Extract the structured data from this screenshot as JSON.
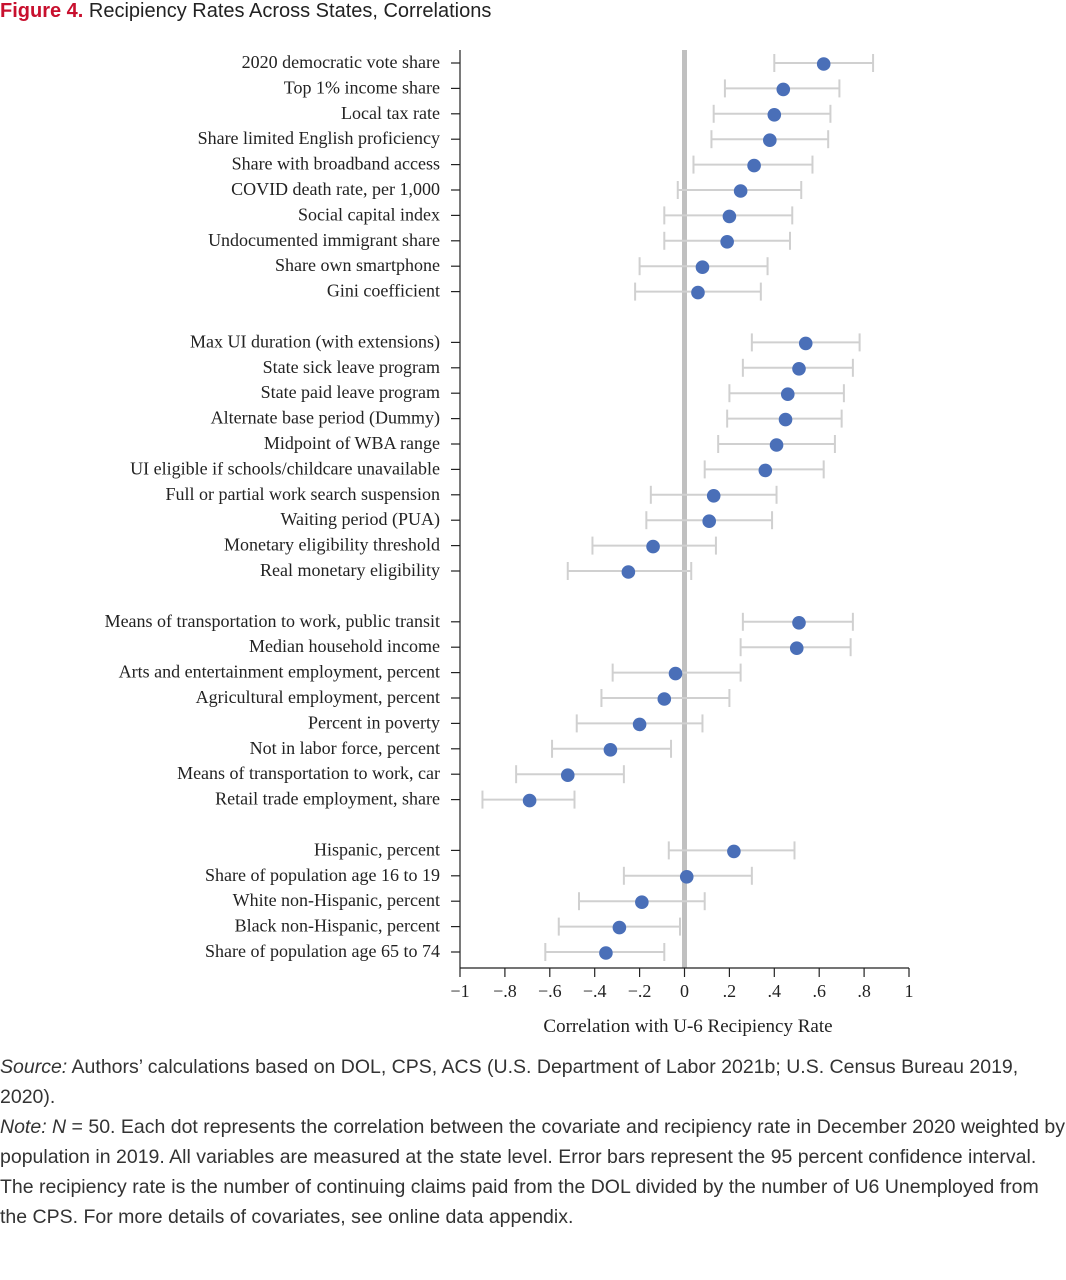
{
  "figure": {
    "number_label": "Figure 4.",
    "title": "Recipiency Rates Across States, Correlations"
  },
  "chart_data": {
    "type": "scatter",
    "orientation": "horizontal",
    "error_bars": true,
    "xlabel": "Correlation with U-6 Recipiency Rate",
    "xlim": [
      -1,
      1
    ],
    "xticks": [
      -1,
      -0.8,
      -0.6,
      -0.4,
      -0.2,
      0,
      0.2,
      0.4,
      0.6,
      0.8,
      1
    ],
    "xtick_labels": [
      "−1",
      "−.8",
      "−.6",
      "−.4",
      "−.2",
      "0",
      ".2",
      ".4",
      ".6",
      ".8",
      "1"
    ],
    "reference_line_x": 0,
    "dot_color": "#4a6fb8",
    "errorbar_color": "#d0d0d0",
    "zero_line_color": "#c0c0c0",
    "groups": [
      {
        "rows": [
          {
            "label": "2020 democratic vote share",
            "estimate": 0.62,
            "ci": [
              0.4,
              0.84
            ]
          },
          {
            "label": "Top 1% income share",
            "estimate": 0.44,
            "ci": [
              0.18,
              0.69
            ]
          },
          {
            "label": "Local tax rate",
            "estimate": 0.4,
            "ci": [
              0.13,
              0.65
            ]
          },
          {
            "label": "Share limited English proficiency",
            "estimate": 0.38,
            "ci": [
              0.12,
              0.64
            ]
          },
          {
            "label": "Share with broadband access",
            "estimate": 0.31,
            "ci": [
              0.04,
              0.57
            ]
          },
          {
            "label": "COVID death rate, per 1,000",
            "estimate": 0.25,
            "ci": [
              -0.03,
              0.52
            ]
          },
          {
            "label": "Social capital index",
            "estimate": 0.2,
            "ci": [
              -0.09,
              0.48
            ]
          },
          {
            "label": "Undocumented immigrant share",
            "estimate": 0.19,
            "ci": [
              -0.09,
              0.47
            ]
          },
          {
            "label": "Share own smartphone",
            "estimate": 0.08,
            "ci": [
              -0.2,
              0.37
            ]
          },
          {
            "label": "Gini coefficient",
            "estimate": 0.06,
            "ci": [
              -0.22,
              0.34
            ]
          }
        ]
      },
      {
        "rows": [
          {
            "label": "Max UI duration (with extensions)",
            "estimate": 0.54,
            "ci": [
              0.3,
              0.78
            ]
          },
          {
            "label": "State sick leave program",
            "estimate": 0.51,
            "ci": [
              0.26,
              0.75
            ]
          },
          {
            "label": "State paid leave program",
            "estimate": 0.46,
            "ci": [
              0.2,
              0.71
            ]
          },
          {
            "label": "Alternate base period (Dummy)",
            "estimate": 0.45,
            "ci": [
              0.19,
              0.7
            ]
          },
          {
            "label": "Midpoint of WBA range",
            "estimate": 0.41,
            "ci": [
              0.15,
              0.67
            ]
          },
          {
            "label": "UI eligible if schools/childcare unavailable",
            "estimate": 0.36,
            "ci": [
              0.09,
              0.62
            ]
          },
          {
            "label": "Full or partial work search suspension",
            "estimate": 0.13,
            "ci": [
              -0.15,
              0.41
            ]
          },
          {
            "label": "Waiting period (PUA)",
            "estimate": 0.11,
            "ci": [
              -0.17,
              0.39
            ]
          },
          {
            "label": "Monetary eligibility threshold",
            "estimate": -0.14,
            "ci": [
              -0.41,
              0.14
            ]
          },
          {
            "label": "Real monetary eligibility",
            "estimate": -0.25,
            "ci": [
              -0.52,
              0.03
            ]
          }
        ]
      },
      {
        "rows": [
          {
            "label": "Means of transportation to work, public transit",
            "estimate": 0.51,
            "ci": [
              0.26,
              0.75
            ]
          },
          {
            "label": "Median household income",
            "estimate": 0.5,
            "ci": [
              0.25,
              0.74
            ]
          },
          {
            "label": "Arts and entertainment employment, percent",
            "estimate": -0.04,
            "ci": [
              -0.32,
              0.25
            ]
          },
          {
            "label": "Agricultural employment, percent",
            "estimate": -0.09,
            "ci": [
              -0.37,
              0.2
            ]
          },
          {
            "label": "Percent in poverty",
            "estimate": -0.2,
            "ci": [
              -0.48,
              0.08
            ]
          },
          {
            "label": "Not in labor force, percent",
            "estimate": -0.33,
            "ci": [
              -0.59,
              -0.06
            ]
          },
          {
            "label": "Means of transportation to work, car",
            "estimate": -0.52,
            "ci": [
              -0.75,
              -0.27
            ]
          },
          {
            "label": "Retail trade employment, share",
            "estimate": -0.69,
            "ci": [
              -0.9,
              -0.49
            ]
          }
        ]
      },
      {
        "rows": [
          {
            "label": "Hispanic, percent",
            "estimate": 0.22,
            "ci": [
              -0.07,
              0.49
            ]
          },
          {
            "label": "Share of population age 16 to 19",
            "estimate": 0.01,
            "ci": [
              -0.27,
              0.3
            ]
          },
          {
            "label": "White non-Hispanic, percent",
            "estimate": -0.19,
            "ci": [
              -0.47,
              0.09
            ]
          },
          {
            "label": "Black non-Hispanic, percent",
            "estimate": -0.29,
            "ci": [
              -0.56,
              -0.02
            ]
          },
          {
            "label": "Share of population age 65 to 74",
            "estimate": -0.35,
            "ci": [
              -0.62,
              -0.09
            ]
          }
        ]
      }
    ]
  },
  "notes": {
    "source_label": "Source:",
    "source_text": " Authors’ calculations based on DOL, CPS, ACS (U.S. Department of Labor 2021b; U.S. Census Bureau 2019, 2020).",
    "note_label": "Note:",
    "note_n_label": "N",
    "note_text": " = 50. Each dot represents the correlation between the covariate and recipiency rate in December 2020 weighted by population in 2019. All variables are measured at the state level. Error bars represent the 95 percent confidence interval. The recipiency rate is the number of continuing claims paid from the DOL divided by the number of U6 Unemployed from the CPS. For more details of covariates, see online data appendix."
  }
}
